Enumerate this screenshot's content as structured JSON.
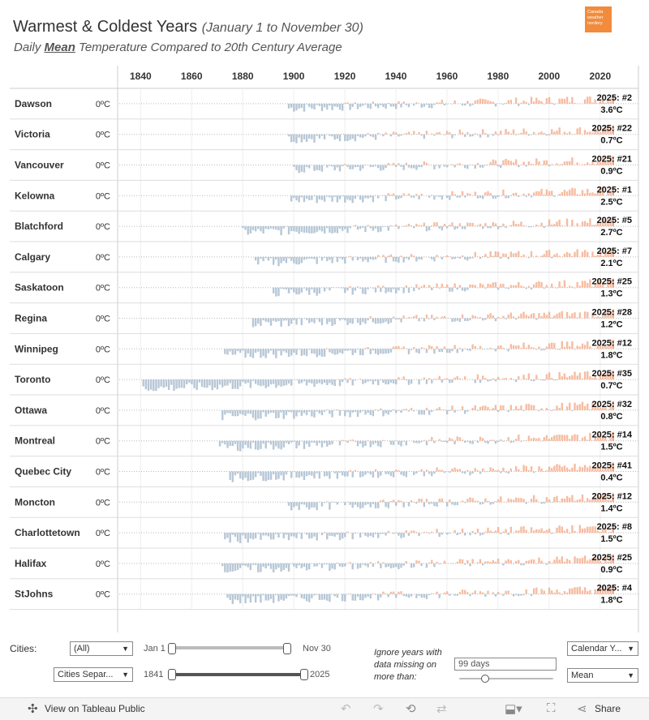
{
  "header": {
    "title": "Warmest & Coldest Years",
    "title_range": "(January 1 to November 30)",
    "subtitle_pre": "Daily ",
    "subtitle_em": "Mean",
    "subtitle_post": " Temperature Compared to 20th Century Average",
    "logo_text": "Canada weather nerdery"
  },
  "chart_data": {
    "type": "bar",
    "title": "Warmest & Coldest Years (January 1 to November 30)",
    "subtitle": "Daily Mean Temperature Compared to 20th Century Average",
    "x_ticks": [
      1840,
      1860,
      1880,
      1900,
      1920,
      1940,
      1960,
      1980,
      2000,
      2020
    ],
    "xlim": [
      1831,
      2035
    ],
    "baseline_label": "0ºC",
    "highlight_year": 2025,
    "colors": {
      "warm": "#f4a582",
      "cold": "#9fb4c8",
      "grid": "#bbbbbb"
    },
    "series": [
      {
        "city": "Dawson",
        "start": 1898,
        "rank_label": "2025: #2",
        "anomaly_label": "3.6ºC"
      },
      {
        "city": "Victoria",
        "start": 1898,
        "rank_label": "2025: #22",
        "anomaly_label": "0.7ºC"
      },
      {
        "city": "Vancouver",
        "start": 1900,
        "rank_label": "2025: #21",
        "anomaly_label": "0.9ºC"
      },
      {
        "city": "Kelowna",
        "start": 1899,
        "rank_label": "2025: #1",
        "anomaly_label": "2.5ºC"
      },
      {
        "city": "Blatchford",
        "start": 1880,
        "rank_label": "2025: #5",
        "anomaly_label": "2.7ºC"
      },
      {
        "city": "Calgary",
        "start": 1885,
        "rank_label": "2025: #7",
        "anomaly_label": "2.1ºC"
      },
      {
        "city": "Saskatoon",
        "start": 1892,
        "rank_label": "2025: #25",
        "anomaly_label": "1.3ºC"
      },
      {
        "city": "Regina",
        "start": 1884,
        "rank_label": "2025: #28",
        "anomaly_label": "1.2ºC"
      },
      {
        "city": "Winnipeg",
        "start": 1873,
        "rank_label": "2025: #12",
        "anomaly_label": "1.8ºC"
      },
      {
        "city": "Toronto",
        "start": 1841,
        "rank_label": "2025: #35",
        "anomaly_label": "0.7ºC"
      },
      {
        "city": "Ottawa",
        "start": 1872,
        "rank_label": "2025: #32",
        "anomaly_label": "0.8ºC"
      },
      {
        "city": "Montreal",
        "start": 1871,
        "rank_label": "2025: #14",
        "anomaly_label": "1.5ºC"
      },
      {
        "city": "Quebec City",
        "start": 1875,
        "rank_label": "2025: #41",
        "anomaly_label": "0.4ºC"
      },
      {
        "city": "Moncton",
        "start": 1898,
        "rank_label": "2025: #12",
        "anomaly_label": "1.4ºC"
      },
      {
        "city": "Charlottetown",
        "start": 1873,
        "rank_label": "2025: #8",
        "anomaly_label": "1.5ºC"
      },
      {
        "city": "Halifax",
        "start": 1872,
        "rank_label": "2025: #25",
        "anomaly_label": "0.9ºC"
      },
      {
        "city": "StJohns",
        "start": 1874,
        "rank_label": "2025: #4",
        "anomaly_label": "1.8ºC"
      }
    ]
  },
  "controls": {
    "cities_label": "Cities:",
    "cities_value": "(All)",
    "layout_value": "Cities Separ...",
    "date_start": "Jan 1",
    "date_end": "Nov 30",
    "year_start": "1841",
    "year_end": "2025",
    "ignore_text": "Ignore years with data missing on more than:",
    "missing_days_value": "99 days",
    "year_type_value": "Calendar Y...",
    "measure_value": "Mean"
  },
  "footer": {
    "view_label": "View on Tableau Public",
    "share_label": "Share"
  }
}
